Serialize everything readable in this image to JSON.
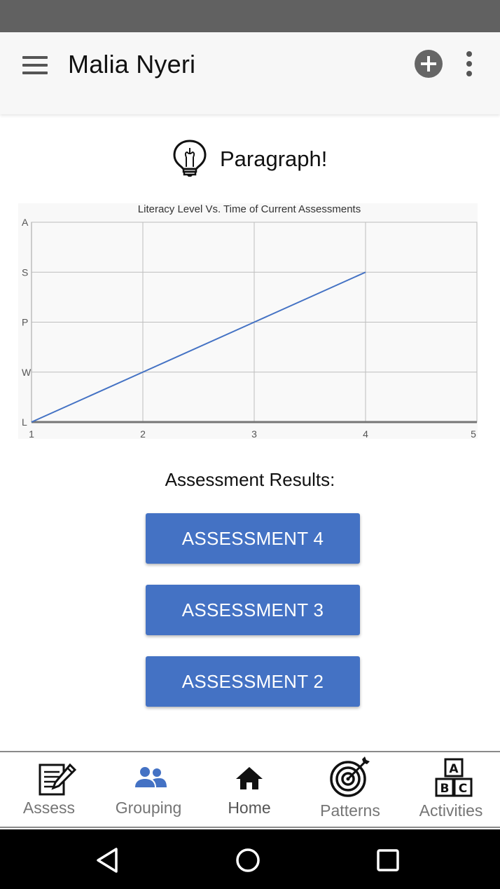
{
  "app_bar": {
    "title": "Malia Nyeri",
    "icons": [
      "menu-icon",
      "add-icon",
      "more-vert-icon"
    ]
  },
  "stage": {
    "icon": "lightbulb-icon",
    "label": "Paragraph!"
  },
  "chart_data": {
    "type": "line",
    "title": "Literacy Level Vs. Time of Current Assessments",
    "xlabel": "",
    "ylabel": "",
    "x_ticks": [
      "1",
      "2",
      "3",
      "4",
      "5"
    ],
    "y_ticks": [
      "L",
      "W",
      "P",
      "S",
      "A"
    ],
    "xlim": [
      1,
      5
    ],
    "ylim": [
      0,
      4
    ],
    "x": [
      1,
      2,
      3,
      4
    ],
    "y": [
      0,
      1,
      2,
      3
    ],
    "grid": true,
    "colors": {
      "line": "#4472c4",
      "grid": "#bdbdbd",
      "axis": "#757575",
      "background": "#f8f8f8"
    }
  },
  "results": {
    "title": "Assessment Results:",
    "buttons": [
      "ASSESSMENT 4",
      "ASSESSMENT 3",
      "ASSESSMENT 2"
    ],
    "button_color": "#4472c4"
  },
  "bottom_nav": {
    "items": [
      {
        "label": "Assess",
        "icon": "assess-icon"
      },
      {
        "label": "Grouping",
        "icon": "group-icon"
      },
      {
        "label": "Home",
        "icon": "home-icon"
      },
      {
        "label": "Patterns",
        "icon": "target-icon"
      },
      {
        "label": "Activities",
        "icon": "abc-blocks-icon"
      }
    ]
  },
  "system_nav": {
    "icons": [
      "back-icon",
      "home-circle-icon",
      "recents-icon"
    ]
  }
}
